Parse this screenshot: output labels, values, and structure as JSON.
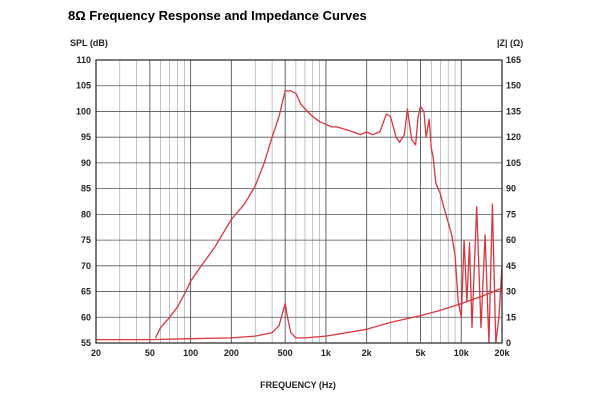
{
  "chart_data": {
    "type": "line",
    "title": "8Ω Frequency Response and Impedance Curves",
    "xlabel": "FREQUENCY (Hz)",
    "ylabel_left": "SPL (dB)",
    "ylabel_right": "|Z| (Ω)",
    "x_scale": "log",
    "xlim": [
      20,
      20000
    ],
    "ylim_left": [
      55,
      110
    ],
    "ylim_right": [
      0,
      165
    ],
    "grid": true,
    "x_ticks": [
      {
        "v": 20,
        "t": "20"
      },
      {
        "v": 50,
        "t": "50"
      },
      {
        "v": 100,
        "t": "100"
      },
      {
        "v": 200,
        "t": "200"
      },
      {
        "v": 500,
        "t": "500"
      },
      {
        "v": 1000,
        "t": "1k"
      },
      {
        "v": 2000,
        "t": "2k"
      },
      {
        "v": 5000,
        "t": "5k"
      },
      {
        "v": 10000,
        "t": "10k"
      },
      {
        "v": 20000,
        "t": "20k"
      }
    ],
    "y_ticks_left": [
      "110",
      "105",
      "100",
      "95",
      "90",
      "85",
      "80",
      "75",
      "70",
      "65",
      "60",
      "55"
    ],
    "y_ticks_right": [
      "165",
      "150",
      "135",
      "120",
      "105",
      "90",
      "75",
      "60",
      "45",
      "30",
      "15",
      "0"
    ],
    "series": [
      {
        "axis": "left",
        "color": "#d9363e",
        "x": [
          55,
          60,
          70,
          80,
          90,
          100,
          120,
          150,
          180,
          200,
          250,
          300,
          350,
          400,
          450,
          500,
          550,
          600,
          650,
          700,
          800,
          900,
          1000,
          1100,
          1200,
          1400,
          1600,
          1800,
          2000,
          2200,
          2500,
          2800,
          3000,
          3300,
          3500,
          3800,
          4000,
          4300,
          4600,
          4800,
          5000,
          5300,
          5500,
          5800,
          6000,
          6200,
          6500,
          7000,
          7500,
          8000,
          8500,
          9000,
          9500,
          10000,
          10500,
          11000,
          11500,
          12000,
          13000,
          14000,
          15000,
          16000,
          17000,
          18000,
          19000,
          20000
        ],
        "y": [
          56,
          58,
          60,
          62,
          64.5,
          67,
          70,
          73.5,
          77,
          79,
          82,
          85.5,
          90,
          95,
          99,
          104,
          104,
          103.5,
          101.5,
          100.5,
          99,
          98,
          97.5,
          97,
          97,
          96.5,
          96,
          95.5,
          96,
          95.5,
          96,
          99.5,
          99,
          95,
          94,
          95.5,
          100.5,
          94.5,
          93.5,
          99,
          101,
          100,
          95,
          98.5,
          93,
          91,
          86,
          84,
          81,
          78.5,
          76,
          72,
          63,
          60,
          75,
          63,
          74.5,
          58,
          81.5,
          58,
          76,
          55,
          82,
          55,
          60,
          70
        ]
      },
      {
        "axis": "right",
        "color": "#d9363e",
        "x": [
          20,
          50,
          100,
          200,
          300,
          400,
          450,
          480,
          500,
          520,
          550,
          600,
          700,
          1000,
          2000,
          3000,
          5000,
          7000,
          10000,
          15000,
          20000
        ],
        "y": [
          2,
          2,
          2.5,
          3,
          4,
          6,
          10,
          18,
          23,
          15,
          6,
          3,
          3,
          4,
          8,
          12,
          16,
          19,
          23,
          28,
          32
        ]
      }
    ]
  }
}
